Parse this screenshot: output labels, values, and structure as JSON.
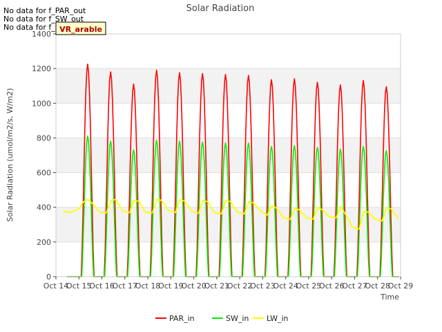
{
  "notes": [
    "No data for f_PAR_out",
    "No data for f_SW_out",
    "No data for f_LW_out"
  ],
  "chart_data": {
    "type": "line",
    "title": "Solar Radiation",
    "xlabel": "Time",
    "ylabel": "Solar Radiation (umol/m2/s, W/m2)",
    "xlim": [
      14,
      29
    ],
    "ylim": [
      0,
      1400
    ],
    "yticks": [
      0,
      200,
      400,
      600,
      800,
      1000,
      1200,
      1400
    ],
    "xticks": [
      14,
      15,
      16,
      17,
      18,
      19,
      20,
      21,
      22,
      23,
      24,
      25,
      26,
      27,
      28,
      29
    ],
    "xtick_labels": [
      "Oct 14",
      "Oct 15",
      "Oct 16",
      "Oct 17",
      "Oct 18",
      "Oct 19",
      "Oct 20",
      "Oct 21",
      "Oct 22",
      "Oct 23",
      "Oct 24",
      "Oct 25",
      "Oct 26",
      "Oct 27",
      "Oct 28",
      "Oct 29"
    ],
    "shaded_bands": [
      [
        200,
        400
      ],
      [
        600,
        800
      ],
      [
        1000,
        1200
      ]
    ],
    "site_label": "VR_arable",
    "legend_position": "bottom-center",
    "series": [
      {
        "name": "PAR_in",
        "color": "#ff0000",
        "peak_times": [
          15.38,
          16.38,
          17.38,
          18.38,
          19.38,
          20.38,
          21.38,
          22.38,
          23.38,
          24.38,
          25.38,
          26.38,
          27.38,
          28.38
        ],
        "peaks": [
          1225,
          1180,
          1110,
          1190,
          1175,
          1170,
          1165,
          1160,
          1135,
          1140,
          1120,
          1105,
          1130,
          1095
        ]
      },
      {
        "name": "SW_in",
        "color": "#00ee00",
        "peak_times": [
          15.38,
          16.38,
          17.38,
          18.38,
          19.38,
          20.38,
          21.38,
          22.38,
          23.38,
          24.38,
          25.38,
          26.38,
          27.38,
          28.38
        ],
        "peaks": [
          810,
          780,
          730,
          785,
          780,
          775,
          770,
          770,
          750,
          755,
          745,
          735,
          750,
          725
        ]
      },
      {
        "name": "LW_in",
        "color": "#ffff00",
        "x": [
          14.3,
          14.6,
          15.0,
          15.2,
          15.4,
          15.6,
          15.9,
          16.2,
          16.4,
          16.6,
          16.9,
          17.2,
          17.4,
          17.6,
          17.9,
          18.2,
          18.4,
          18.6,
          18.9,
          19.2,
          19.4,
          19.6,
          19.9,
          20.2,
          20.4,
          20.6,
          20.9,
          21.2,
          21.4,
          21.6,
          21.9,
          22.2,
          22.4,
          22.6,
          22.9,
          23.2,
          23.4,
          23.6,
          23.9,
          24.2,
          24.4,
          24.6,
          24.9,
          25.2,
          25.4,
          25.6,
          25.9,
          26.2,
          26.4,
          26.6,
          26.9,
          27.2,
          27.4,
          27.6,
          27.9,
          28.2,
          28.4,
          28.6,
          28.9
        ],
        "y": [
          378,
          370,
          390,
          432,
          445,
          420,
          372,
          368,
          440,
          445,
          380,
          368,
          440,
          435,
          372,
          368,
          445,
          440,
          382,
          370,
          445,
          435,
          378,
          365,
          440,
          432,
          370,
          362,
          440,
          432,
          372,
          362,
          432,
          425,
          380,
          355,
          410,
          395,
          340,
          330,
          395,
          385,
          340,
          332,
          400,
          385,
          345,
          340,
          405,
          360,
          285,
          275,
          375,
          372,
          330,
          322,
          398,
          390,
          335
        ]
      }
    ]
  }
}
